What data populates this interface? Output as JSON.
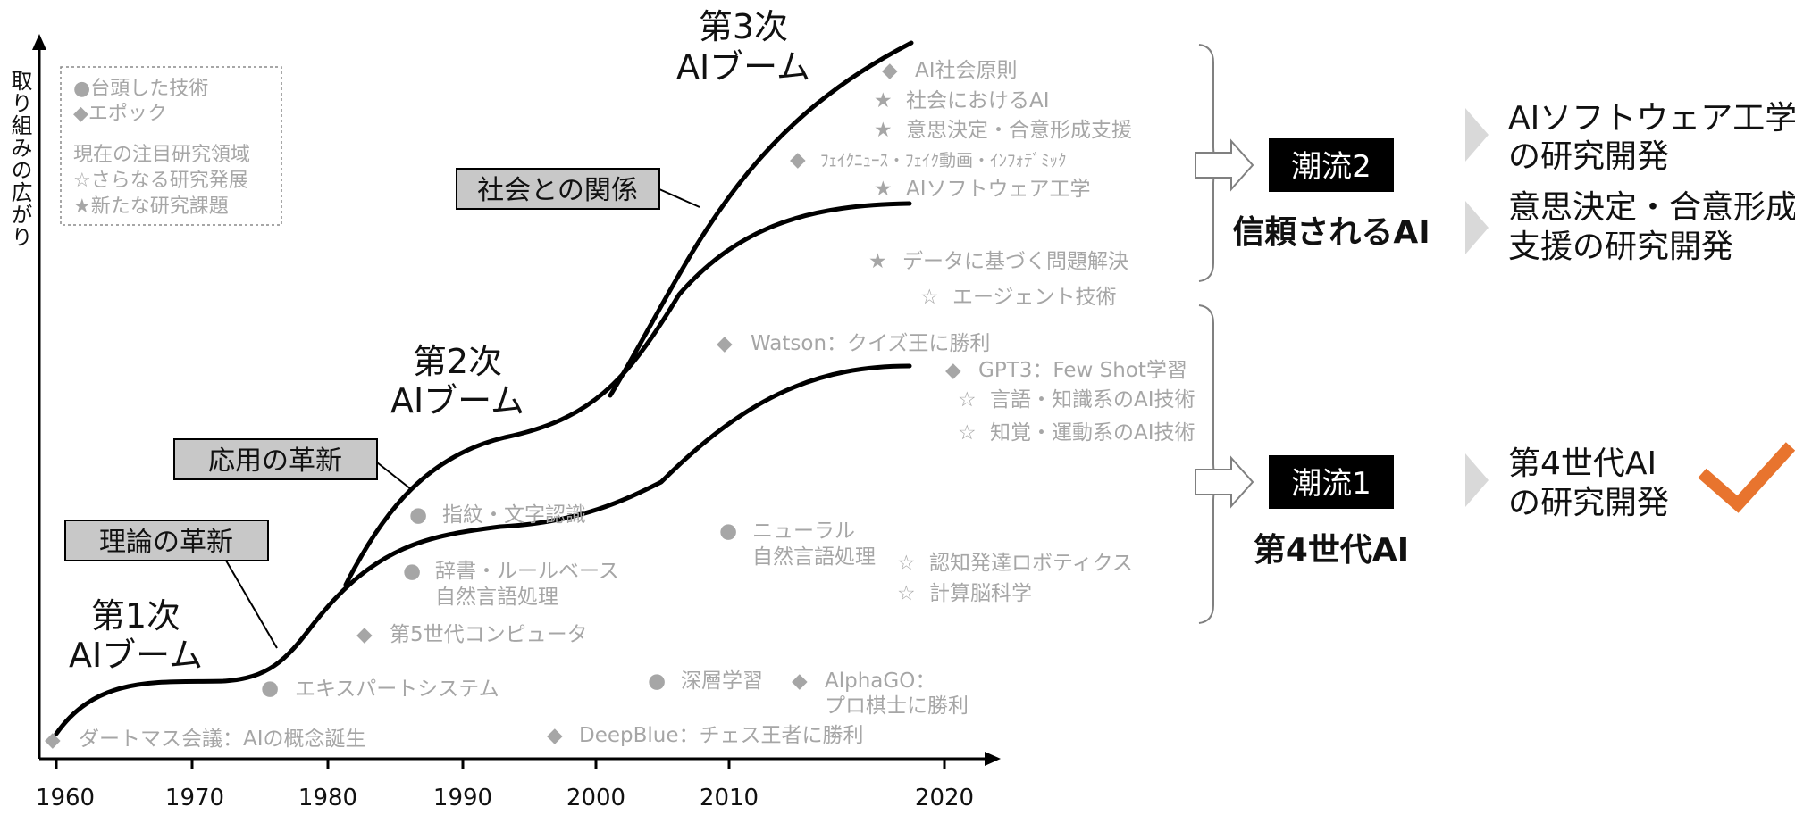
{
  "axis": {
    "y_label": "取り組みの広がり",
    "x_ticks": [
      "1960",
      "1970",
      "1980",
      "1990",
      "2000",
      "2010",
      "2020"
    ]
  },
  "legend": {
    "tech": "●台頭した技術",
    "epoch": "◆エポック",
    "current_title": "現在の注目研究領域",
    "further": "☆さらなる研究発展",
    "new_topics": "★新たな研究課題"
  },
  "booms": {
    "first": [
      "第1次",
      "AIブーム"
    ],
    "second": [
      "第2次",
      "AIブーム"
    ],
    "third": [
      "第3次",
      "AIブーム"
    ]
  },
  "boxes": {
    "theory": "理論の革新",
    "application": "応用の革新",
    "society": "社会との関係"
  },
  "annotations": [
    {
      "marker": "◆",
      "lines": [
        "ダートマス会議：AIの概念誕生"
      ]
    },
    {
      "marker": "●",
      "lines": [
        "エキスパートシステム"
      ]
    },
    {
      "marker": "◆",
      "lines": [
        "第5世代コンピュータ"
      ]
    },
    {
      "marker": "●",
      "lines": [
        "辞書・ルールベース",
        "自然言語処理"
      ]
    },
    {
      "marker": "●",
      "lines": [
        "指紋・文字認識"
      ]
    },
    {
      "marker": "◆",
      "lines": [
        "DeepBlue：チェス王者に勝利"
      ]
    },
    {
      "marker": "●",
      "lines": [
        "深層学習"
      ]
    },
    {
      "marker": "◆",
      "lines": [
        "AlphaGO：",
        "プロ棋士に勝利"
      ]
    },
    {
      "marker": "●",
      "lines": [
        "ニューラル",
        "自然言語処理"
      ]
    },
    {
      "marker": "☆",
      "lines": [
        "認知発達ロボティクス"
      ]
    },
    {
      "marker": "☆",
      "lines": [
        "計算脳科学"
      ]
    },
    {
      "marker": "◆",
      "lines": [
        "Watson：クイズ王に勝利"
      ]
    },
    {
      "marker": "◆",
      "lines": [
        "GPT3：Few Shot学習"
      ]
    },
    {
      "marker": "☆",
      "lines": [
        "言語・知識系のAI技術"
      ]
    },
    {
      "marker": "☆",
      "lines": [
        "知覚・運動系のAI技術"
      ]
    },
    {
      "marker": "★",
      "lines": [
        "データに基づく問題解決"
      ]
    },
    {
      "marker": "☆",
      "lines": [
        "エージェント技術"
      ]
    },
    {
      "marker": "◆",
      "lines": [
        "AI社会原則"
      ]
    },
    {
      "marker": "★",
      "lines": [
        "社会におけるAI"
      ]
    },
    {
      "marker": "★",
      "lines": [
        "意思決定・合意形成支援"
      ]
    },
    {
      "marker": "◆",
      "lines": [
        "ﾌｪｲｸﾆｭｰｽ・ﾌｪｲｸ動画・ｲﾝﾌｫﾃﾞﾐｯｸ"
      ]
    },
    {
      "marker": "★",
      "lines": [
        "AIソフトウェア工学"
      ]
    }
  ],
  "trends": {
    "trend2": {
      "badge": "潮流2",
      "subtitle": "信頼されるAI",
      "items": [
        [
          "AIソフトウェア工学",
          "の研究開発"
        ],
        [
          "意思決定・合意形成",
          "支援の研究開発"
        ]
      ]
    },
    "trend1": {
      "badge": "潮流1",
      "subtitle": "第4世代AI",
      "items": [
        [
          "第4世代AI",
          "の研究開発"
        ]
      ]
    }
  },
  "colors": {
    "curve": "#000000",
    "annotation": "#a6a6a6",
    "box_fill": "#c8c8c8",
    "badge": "#000000",
    "check": "#e8742e",
    "bullet_triangle": "#d9d9d9"
  }
}
